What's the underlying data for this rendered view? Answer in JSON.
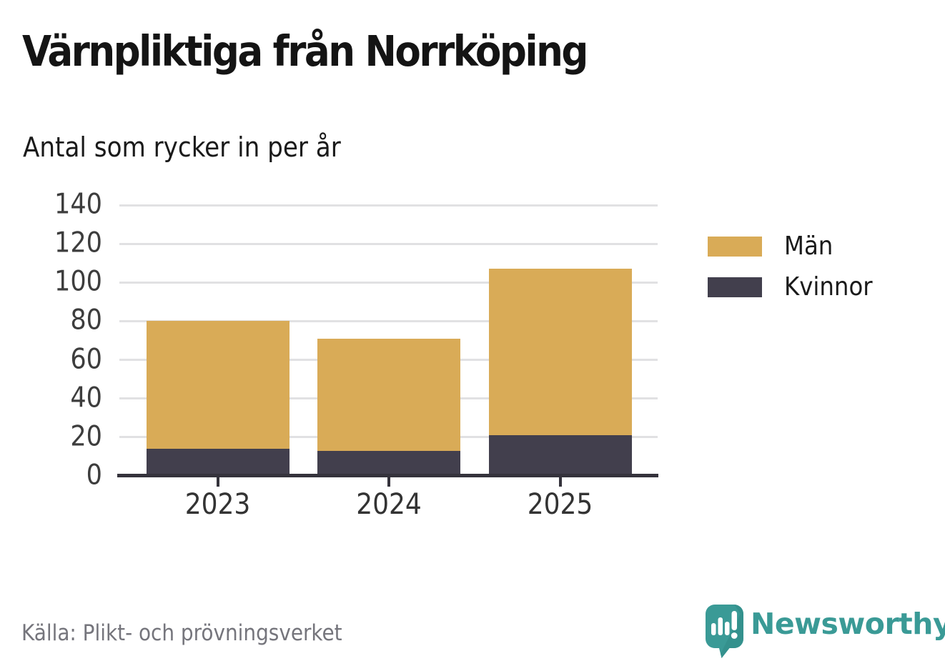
{
  "chart_data": {
    "type": "bar",
    "stacked": true,
    "title": "Värnpliktiga från Norrköping",
    "subtitle": "Antal som rycker in per år",
    "categories": [
      "2023",
      "2024",
      "2025"
    ],
    "series": [
      {
        "name": "Män",
        "color": "#d9ab57",
        "values": [
          66,
          58,
          86
        ]
      },
      {
        "name": "Kvinnor",
        "color": "#423f4d",
        "values": [
          14,
          13,
          21
        ]
      }
    ],
    "stack_order_bottom_to_top": [
      "Kvinnor",
      "Män"
    ],
    "stacked_totals": [
      80,
      71,
      107
    ],
    "ylim": [
      0,
      140
    ],
    "yticks": [
      0,
      20,
      40,
      60,
      80,
      100,
      120,
      140
    ],
    "grid": "horizontal",
    "legend_position": "right"
  },
  "footer": {
    "source": "Källa: Plikt- och prövningsverket",
    "brand": "Newsworthy"
  },
  "colors": {
    "men": "#d9ab57",
    "women": "#423f4d",
    "axis": "#35333c",
    "gridline": "#e1e1e3",
    "brand_teal": "#3a9a96",
    "source_text": "#75757c"
  }
}
